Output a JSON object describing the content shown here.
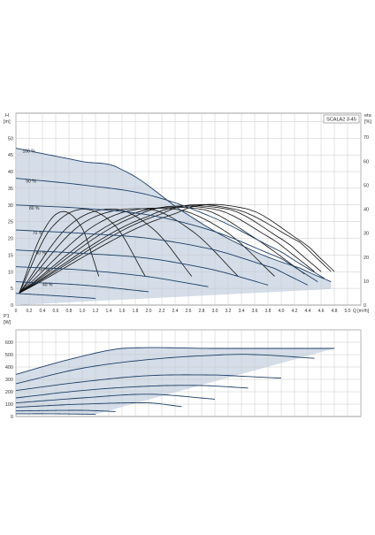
{
  "chart_data": [
    {
      "type": "line",
      "name": "SCALA2 3-45",
      "title": "SCALA2 3-45",
      "ylabel_left_name": "H",
      "ylabel_left_unit": "[m]",
      "ylabel_right_name": "eta",
      "ylabel_right_unit": "[%]",
      "xlabel_name": "Q",
      "xlabel_unit": "[m³/h]",
      "xlim": [
        0,
        5.2
      ],
      "ylim": [
        0,
        57.5
      ],
      "x_ticks": [
        "0",
        "0.2",
        "0.4",
        "0.6",
        "0.8",
        "1.0",
        "1.2",
        "1.4",
        "1.6",
        "1.8",
        "2.0",
        "2.2",
        "2.4",
        "2.6",
        "2.8",
        "3.0",
        "3.2",
        "3.4",
        "3.6",
        "3.8",
        "4.0",
        "4.2",
        "4.4",
        "4.6",
        "4.8",
        "5.0",
        "Q [m³/h]"
      ],
      "y_ticks_left": [
        "0",
        "5",
        "10",
        "15",
        "20",
        "25",
        "30",
        "35",
        "40",
        "45",
        "50"
      ],
      "y_ticks_right": [
        "0",
        "10",
        "20",
        "30",
        "40",
        "50",
        "60",
        "70"
      ],
      "y2lim": [
        0,
        80
      ],
      "grid": true,
      "series": [
        {
          "name": "100 %",
          "x": [
            0,
            0.5,
            1.0,
            1.6,
            2.6,
            3.5,
            4.3,
            4.75
          ],
          "y": [
            47,
            45,
            43,
            40.5,
            27,
            17,
            11,
            7
          ]
        },
        {
          "name": "90 %",
          "x": [
            0,
            1.0,
            2.0,
            3.0,
            4.0,
            4.65
          ],
          "y": [
            38,
            36,
            33,
            26,
            16,
            8
          ]
        },
        {
          "name": "80 %",
          "x": [
            0,
            1.0,
            2.0,
            3.0,
            4.0,
            4.55
          ],
          "y": [
            30,
            29,
            27,
            22,
            14,
            7
          ]
        },
        {
          "name": "70 %",
          "x": [
            0,
            1.0,
            2.0,
            3.0,
            3.9,
            4.4
          ],
          "y": [
            22.5,
            21.5,
            20,
            16.5,
            11,
            6
          ]
        },
        {
          "name": "60 %",
          "x": [
            0,
            1.0,
            2.0,
            3.0,
            3.8
          ],
          "y": [
            16.5,
            15.5,
            14,
            10.5,
            6
          ]
        },
        {
          "name": "50 %",
          "x": [
            0,
            1.0,
            2.0,
            2.9
          ],
          "y": [
            11.5,
            10.5,
            8.5,
            5.5
          ]
        },
        {
          "name": "40 %",
          "x": [
            0,
            1.0,
            2.0
          ],
          "y": [
            7,
            6,
            4
          ]
        },
        {
          "name": "",
          "x": [
            0,
            0.6,
            1.2
          ],
          "y": [
            3.5,
            2.8,
            2
          ]
        }
      ],
      "efficiency_series": [
        {
          "x": [
            0.05,
            0.4,
            0.7,
            1.0,
            1.25
          ],
          "y2": [
            5,
            30,
            39,
            32,
            12
          ]
        },
        {
          "x": [
            0.05,
            0.5,
            1.0,
            1.5,
            1.95
          ],
          "y2": [
            5,
            31,
            40,
            33,
            12
          ]
        },
        {
          "x": [
            0.05,
            0.8,
            1.5,
            2.1,
            2.65
          ],
          "y2": [
            5,
            33,
            40,
            31,
            12
          ]
        },
        {
          "x": [
            0.05,
            1.0,
            2.0,
            2.7,
            3.35
          ],
          "y2": [
            5,
            34,
            40,
            30,
            12
          ]
        },
        {
          "x": [
            0.05,
            1.3,
            2.4,
            3.2,
            3.9
          ],
          "y2": [
            5,
            35,
            40,
            30,
            12
          ]
        },
        {
          "x": [
            0.05,
            1.6,
            2.8,
            3.6,
            4.35
          ],
          "y2": [
            5,
            36,
            40,
            28,
            13
          ]
        },
        {
          "x": [
            0.05,
            1.8,
            3.0,
            3.9,
            4.5
          ],
          "y2": [
            5,
            37,
            40,
            27,
            14
          ]
        },
        {
          "x": [
            0.05,
            2.0,
            3.2,
            4.1,
            4.6
          ],
          "y2": [
            5,
            37,
            40,
            26,
            14
          ]
        },
        {
          "x": [
            0.05,
            2.2,
            3.3,
            4.3,
            4.75
          ],
          "y2": [
            5,
            38,
            40,
            26,
            14
          ]
        },
        {
          "x": [
            0.05,
            2.4,
            3.5,
            4.4,
            4.8
          ],
          "y2": [
            5,
            38,
            40,
            25,
            14
          ]
        }
      ]
    },
    {
      "type": "line",
      "name": "P1",
      "ylabel_left_name": "P1",
      "ylabel_left_unit": "[W]",
      "xlim": [
        0,
        5.2
      ],
      "ylim": [
        0,
        700
      ],
      "y_ticks_left": [
        "0",
        "100",
        "200",
        "300",
        "400",
        "500",
        "600"
      ],
      "grid": true,
      "series": [
        {
          "x": [
            0,
            0.8,
            1.6,
            3.0,
            4.8
          ],
          "y": [
            340,
            460,
            550,
            550,
            550
          ]
        },
        {
          "x": [
            0,
            1.0,
            2.0,
            3.0,
            3.6,
            4.5
          ],
          "y": [
            265,
            390,
            460,
            495,
            500,
            470
          ]
        },
        {
          "x": [
            0,
            1.0,
            2.0,
            3.0,
            3.6,
            4.0
          ],
          "y": [
            210,
            280,
            330,
            335,
            320,
            310
          ]
        },
        {
          "x": [
            0,
            1.0,
            2.0,
            2.8,
            3.5
          ],
          "y": [
            150,
            210,
            245,
            250,
            230
          ]
        },
        {
          "x": [
            0,
            1.0,
            2.0,
            3.0
          ],
          "y": [
            110,
            150,
            180,
            140
          ]
        },
        {
          "x": [
            0,
            1.0,
            2.0,
            2.5
          ],
          "y": [
            75,
            100,
            110,
            80
          ]
        },
        {
          "x": [
            0,
            1.0,
            1.5
          ],
          "y": [
            45,
            50,
            40
          ]
        },
        {
          "x": [
            0,
            0.5,
            1.2
          ],
          "y": [
            22,
            22,
            18
          ]
        }
      ]
    }
  ]
}
